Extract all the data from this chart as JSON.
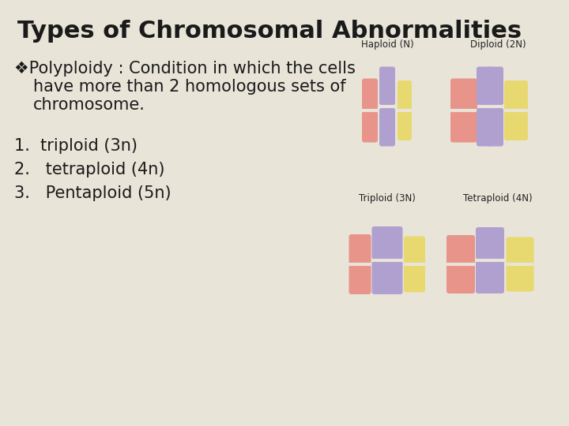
{
  "title": "Types of Chromosomal Abnormalities",
  "background_color": "#e8e4d8",
  "title_fontsize": 22,
  "bullet_symbol": "❖",
  "bullet_text_line1": "Polyploidy : Condition in which the cells",
  "bullet_text_line2": "have more than 2 homologous sets of",
  "bullet_text_line3": "chromosome.",
  "list_items": [
    "1.  triploid (3n)",
    "2.   tetraploid (4n)",
    "3.   Pentaploid (5n)"
  ],
  "text_color": "#1a1a1a",
  "body_fontsize": 15,
  "list_fontsize": 15,
  "diagram_labels": [
    "Haploid (N)",
    "Diploid (2N)",
    "Triploid (3N)",
    "Tetraploid (4N)"
  ],
  "chr_colors": {
    "pink": "#e8948a",
    "purple": "#b0a0d0",
    "yellow": "#e8d870"
  }
}
